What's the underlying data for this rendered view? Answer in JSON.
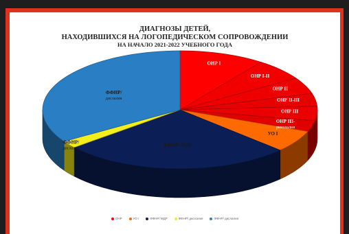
{
  "chart_data": {
    "type": "pie",
    "title_lines": [
      "ДИАГНОЗЫ ДЕТЕЙ,",
      "НАХОДИВШИХСЯ НА ЛОГОПЕДИЧЕСКОМ СОПРОВОЖДЕНИИ",
      "НА НАЧАЛО 2021-2022 УЧЕБНОГО ГОДА"
    ],
    "slices": [
      {
        "label": "ОНР I",
        "value": 10.0,
        "color": "#ff0000"
      },
      {
        "label": "ОНР I-II",
        "value": 6.0,
        "color": "#f20000"
      },
      {
        "label": "ОНР II",
        "value": 4.5,
        "color": "#ee0000"
      },
      {
        "label": "ОНР II-III",
        "value": 3.5,
        "color": "#e60000"
      },
      {
        "label": "ОНР III",
        "value": 4.0,
        "color": "#ea0000"
      },
      {
        "label": "ОНР III-",
        "sublabel": "ринолалия",
        "value": 3.0,
        "color": "#e00000"
      },
      {
        "label": "УО I",
        "value": 6.0,
        "color": "#ff6a00"
      },
      {
        "label": "ФФНР/ МДР",
        "value": 27.0,
        "color": "#0b1e55"
      },
      {
        "label": "ФФНР/",
        "sublabel": "дислалия",
        "value": 2.0,
        "color": "#f4ee1a"
      },
      {
        "label": "ФФНР/",
        "sublabel": "дислалия",
        "value": 34.0,
        "color": "#2a7fc4"
      }
    ],
    "legend": [
      {
        "label": "ОНР",
        "color": "#ff0000"
      },
      {
        "label": "УО I",
        "color": "#ff6a00"
      },
      {
        "label": "ФФНР/ МДР",
        "color": "#0b1e55"
      },
      {
        "label": "ФФНР/ дислалия",
        "color": "#f4ee1a"
      },
      {
        "label": "ФФНР/ дислалия",
        "color": "#2a7fc4"
      }
    ]
  }
}
